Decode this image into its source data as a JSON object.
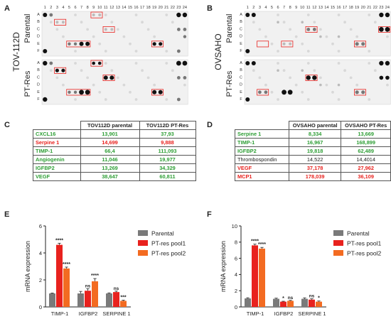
{
  "panels": {
    "A": {
      "letter": "A",
      "side_label": "TOV-112D",
      "top_label": "Parental",
      "bottom_label": "PT-Res"
    },
    "B": {
      "letter": "B",
      "side_label": "OVSAHO",
      "top_label": "Parental",
      "bottom_label": "PT-Res"
    },
    "C": {
      "letter": "C"
    },
    "D": {
      "letter": "D"
    },
    "E": {
      "letter": "E"
    },
    "F": {
      "letter": "F"
    }
  },
  "blot": {
    "columns": [
      "1",
      "2",
      "3",
      "4",
      "5",
      "6",
      "7",
      "8",
      "9",
      "10",
      "11",
      "12",
      "13",
      "14",
      "15",
      "16",
      "17",
      "18",
      "19",
      "20",
      "21",
      "22",
      "23",
      "24"
    ],
    "rows": [
      "A",
      "B",
      "C",
      "D",
      "E",
      "F"
    ]
  },
  "table_c": {
    "headers": [
      "",
      "TOV112D parental",
      "TOV112D PT-Res"
    ],
    "rows": [
      {
        "name": "CXCL16",
        "parental": "13,901",
        "ptres": "37,93",
        "color": "green"
      },
      {
        "name": "Serpine 1",
        "parental": "14,699",
        "ptres": "9,888",
        "color": "red"
      },
      {
        "name": "TIMP-1",
        "parental": "66,4",
        "ptres": "111,093",
        "color": "green"
      },
      {
        "name": "Angiogenin",
        "parental": "11,046",
        "ptres": "19,977",
        "color": "green"
      },
      {
        "name": "IGFBP2",
        "parental": "13,269",
        "ptres": "34,329",
        "color": "green"
      },
      {
        "name": "VEGF",
        "parental": "38,647",
        "ptres": "60,811",
        "color": "green"
      }
    ]
  },
  "table_d": {
    "headers": [
      "",
      "OVSAHO parental",
      "OVSAHO PT-Res"
    ],
    "rows": [
      {
        "name": "Serpine 1",
        "parental": "8,334",
        "ptres": "13,669",
        "color": "green"
      },
      {
        "name": "TIMP-1",
        "parental": "16,967",
        "ptres": "168,899",
        "color": "green"
      },
      {
        "name": "IGFBP2",
        "parental": "19,818",
        "ptres": "62,489",
        "color": "green"
      },
      {
        "name": "Thrombospondin",
        "parental": "14,522",
        "ptres": "14,4014",
        "color": "black"
      },
      {
        "name": "VEGF",
        "parental": "37,178",
        "ptres": "27,962",
        "color": "red"
      },
      {
        "name": "MCP1",
        "parental": "178,039",
        "ptres": "36,109",
        "color": "red"
      }
    ]
  },
  "chart_data": [
    {
      "type": "bar",
      "panel": "E",
      "categories": [
        "TIMP-1",
        "IGFBP2",
        "SERPINE 1"
      ],
      "ylabel": "mRNA expression",
      "ylim": [
        0,
        6
      ],
      "yticks": [
        "0",
        "2",
        "4",
        "6"
      ],
      "legend_position": "top-right",
      "series": [
        {
          "name": "Parental",
          "color": "#7a7a7a",
          "values": [
            1.0,
            1.0,
            1.0
          ],
          "errors": [
            0.03,
            0.15,
            0.04
          ],
          "sig": [
            "",
            "",
            ""
          ]
        },
        {
          "name": "PT-res pool1",
          "color": "#e8221e",
          "values": [
            4.6,
            1.2,
            1.1
          ],
          "errors": [
            0.12,
            0.15,
            0.07
          ],
          "sig": [
            "****",
            "ns",
            "ns"
          ]
        },
        {
          "name": "PT-res pool2",
          "color": "#f36b21",
          "values": [
            2.85,
            1.9,
            0.45
          ],
          "errors": [
            0.1,
            0.2,
            0.05
          ],
          "sig": [
            "****",
            "****",
            "***"
          ]
        }
      ]
    },
    {
      "type": "bar",
      "panel": "F",
      "categories": [
        "TIMP-1",
        "IGFBP2",
        "SERPINE 1"
      ],
      "ylabel": "mRNA expression",
      "ylim": [
        0,
        10
      ],
      "yticks": [
        "0",
        "2",
        "4",
        "6",
        "8",
        "10"
      ],
      "legend_position": "top-right",
      "series": [
        {
          "name": "Parental",
          "color": "#7a7a7a",
          "values": [
            1.05,
            1.0,
            1.0
          ],
          "errors": [
            0.08,
            0.08,
            0.12
          ],
          "sig": [
            "",
            "",
            ""
          ]
        },
        {
          "name": "PT-res pool1",
          "color": "#e8221e",
          "values": [
            7.6,
            0.65,
            0.9
          ],
          "errors": [
            0.15,
            0.05,
            0.1
          ],
          "sig": [
            "****",
            "*",
            "ns"
          ]
        },
        {
          "name": "PT-res pool2",
          "color": "#f36b21",
          "values": [
            7.2,
            0.75,
            0.65
          ],
          "errors": [
            0.15,
            0.06,
            0.08
          ],
          "sig": [
            "****",
            "ns",
            "*"
          ]
        }
      ]
    }
  ]
}
